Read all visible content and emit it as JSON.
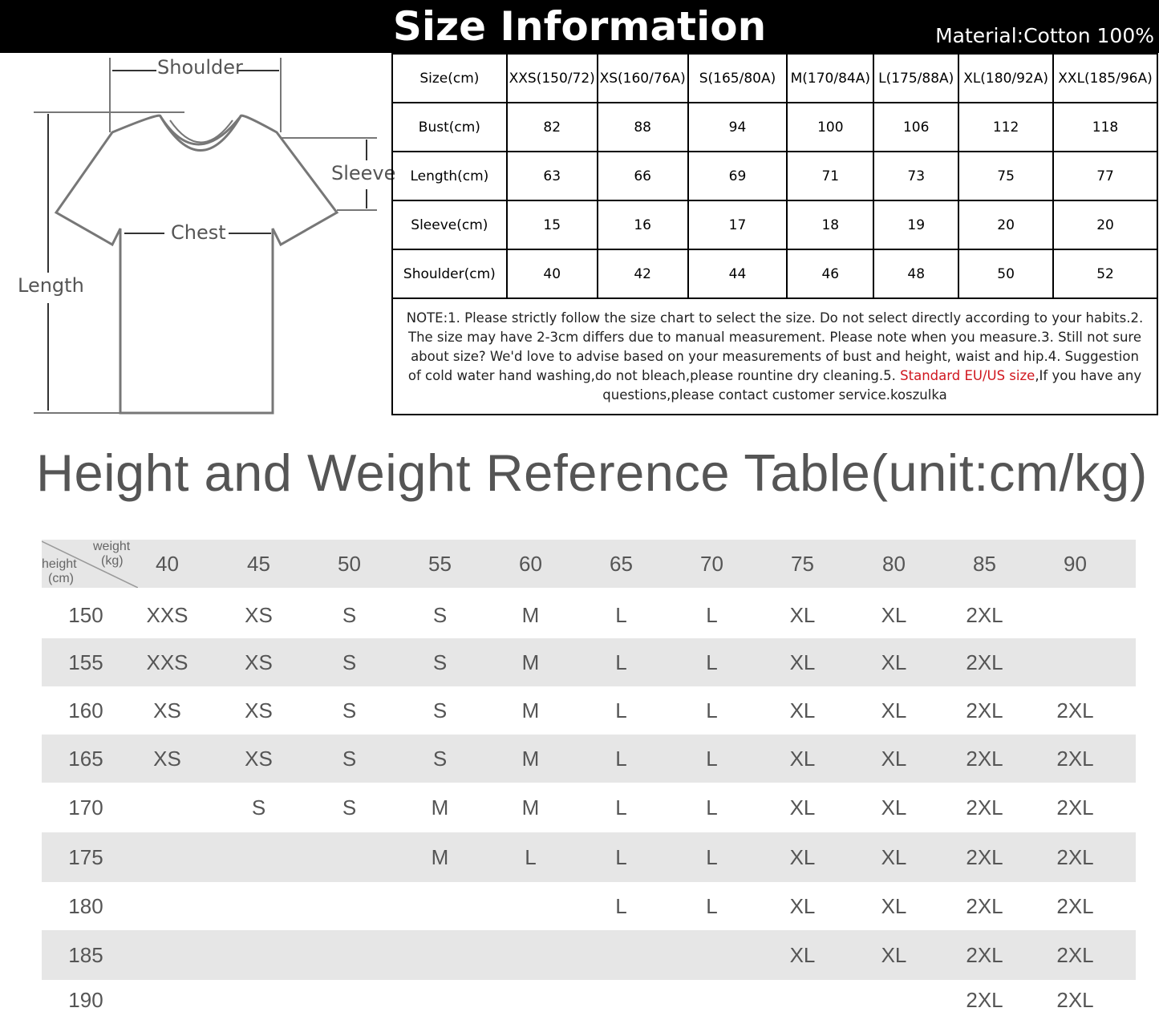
{
  "header": {
    "title": "Size Information",
    "material": "Material:Cotton 100%"
  },
  "diagram": {
    "shoulder": "Shoulder",
    "sleeve": "Sleeve",
    "chest": "Chest",
    "length": "Length"
  },
  "size_table": {
    "headers": [
      "Size(cm)",
      "XXS(150/72)",
      "XS(160/76A)",
      "S(165/80A)",
      "M(170/84A)",
      "L(175/88A)",
      "XL(180/92A)",
      "XXL(185/96A)"
    ],
    "rows": [
      [
        "Bust(cm)",
        "82",
        "88",
        "94",
        "100",
        "106",
        "112",
        "118"
      ],
      [
        "Length(cm)",
        "63",
        "66",
        "69",
        "71",
        "73",
        "75",
        "77"
      ],
      [
        "Sleeve(cm)",
        "15",
        "16",
        "17",
        "18",
        "19",
        "20",
        "20"
      ],
      [
        "Shoulder(cm)",
        "40",
        "42",
        "44",
        "46",
        "48",
        "50",
        "52"
      ]
    ],
    "note_before": "NOTE:1. Please strictly follow the size chart to select the size. Do not select directly according to your habits.2. The size may have 2-3cm differs due to manual measurement. Please note when you measure.3. Still not sure about size? We'd love to advise based on your measurements of bust and height, waist and hip.4. Suggestion of cold water hand washing,do not bleach,please rountine dry cleaning.5. ",
    "note_highlight": "Standard EU/US size",
    "note_after": ",If you have any questions,please contact customer service.koszulka",
    "highlight_color": "#d0161e"
  },
  "reference": {
    "title": "Height and Weight Reference Table(unit:cm/kg)",
    "corner_weight": "weight",
    "corner_kg": "(kg)",
    "corner_height": "height",
    "corner_cm": "(cm)",
    "weights": [
      "40",
      "45",
      "50",
      "55",
      "60",
      "65",
      "70",
      "75",
      "80",
      "85",
      "90"
    ],
    "rows": [
      {
        "height": "150",
        "sizes": [
          "XXS",
          "XS",
          "S",
          "S",
          "M",
          "L",
          "L",
          "XL",
          "XL",
          "2XL",
          ""
        ]
      },
      {
        "height": "155",
        "sizes": [
          "XXS",
          "XS",
          "S",
          "S",
          "M",
          "L",
          "L",
          "XL",
          "XL",
          "2XL",
          ""
        ]
      },
      {
        "height": "160",
        "sizes": [
          "XS",
          "XS",
          "S",
          "S",
          "M",
          "L",
          "L",
          "XL",
          "XL",
          "2XL",
          "2XL"
        ]
      },
      {
        "height": "165",
        "sizes": [
          "XS",
          "XS",
          "S",
          "S",
          "M",
          "L",
          "L",
          "XL",
          "XL",
          "2XL",
          "2XL"
        ]
      },
      {
        "height": "170",
        "sizes": [
          "",
          "S",
          "S",
          "M",
          "M",
          "L",
          "L",
          "XL",
          "XL",
          "2XL",
          "2XL"
        ]
      },
      {
        "height": "175",
        "sizes": [
          "",
          "",
          "",
          "M",
          "L",
          "L",
          "L",
          "XL",
          "XL",
          "2XL",
          "2XL"
        ]
      },
      {
        "height": "180",
        "sizes": [
          "",
          "",
          "",
          "",
          "",
          "L",
          "L",
          "XL",
          "XL",
          "2XL",
          "2XL"
        ]
      },
      {
        "height": "185",
        "sizes": [
          "",
          "",
          "",
          "",
          "",
          "",
          "",
          "XL",
          "XL",
          "2XL",
          "2XL"
        ]
      },
      {
        "height": "190",
        "sizes": [
          "",
          "",
          "",
          "",
          "",
          "",
          "",
          "",
          "",
          "2XL",
          "2XL"
        ]
      }
    ]
  }
}
